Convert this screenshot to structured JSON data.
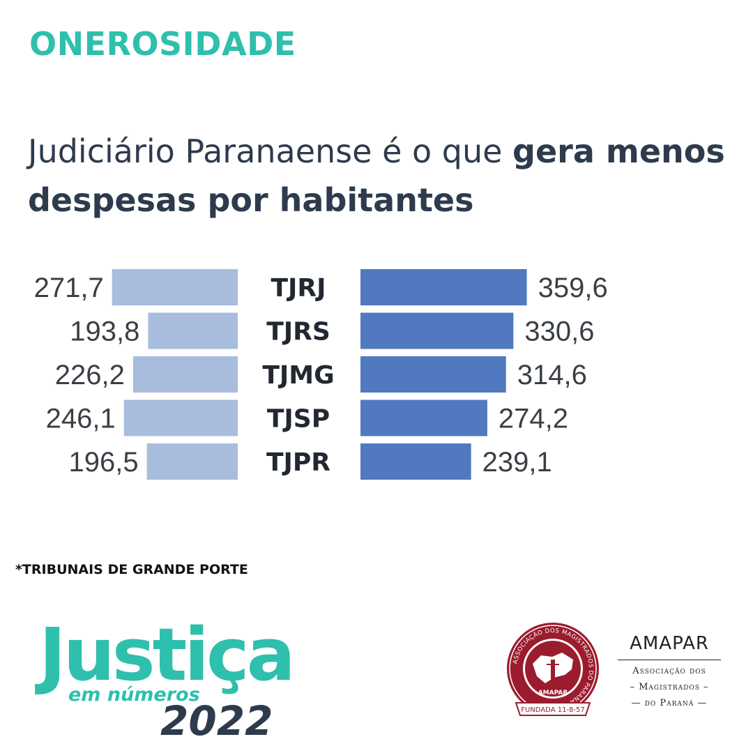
{
  "kicker": "ONEROSIDADE",
  "headline": {
    "part1": "Judiciário Paranaense é o que ",
    "part2": "gera menos despesas por habitantes"
  },
  "chart_data": {
    "type": "bar",
    "categories": [
      "TJRJ",
      "TJRS",
      "TJMG",
      "TJSP",
      "TJPR"
    ],
    "series": [
      {
        "values": [
          271.7,
          193.8,
          226.2,
          246.1,
          196.5
        ],
        "labels": [
          "271,7",
          "193,8",
          "226,2",
          "246,1",
          "196,5"
        ],
        "color": "#a8bcde"
      },
      {
        "values": [
          359.6,
          330.6,
          314.6,
          274.2,
          239.1
        ],
        "labels": [
          "359,6",
          "330,6",
          "314,6",
          "274,2",
          "239,1"
        ],
        "color": "#5079bf"
      }
    ],
    "xlim": [
      0,
      400
    ]
  },
  "footnote": "*TRIBUNAIS DE GRANDE PORTE",
  "logo_left": {
    "word": "Justiça",
    "sub": "em números",
    "year": "2022"
  },
  "amapar": {
    "name": "AMAPAR",
    "line1": "Associação dos",
    "line2": "– Magistrados –",
    "line3": "— do Paraná —",
    "seal_ring": "ASSOCIAÇÃO DOS MAGISTRADOS DO PARANÁ",
    "seal_center": "AMAPAR",
    "seal_bottom": "FUNDADA 11-8-57",
    "seal_color": "#9b1c2e"
  }
}
